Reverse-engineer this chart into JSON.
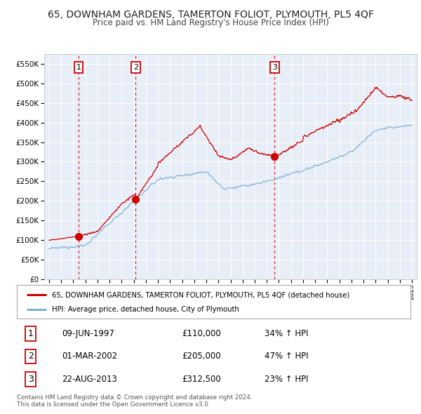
{
  "title": "65, DOWNHAM GARDENS, TAMERTON FOLIOT, PLYMOUTH, PL5 4QF",
  "subtitle": "Price paid vs. HM Land Registry's House Price Index (HPI)",
  "legend_line1": "65, DOWNHAM GARDENS, TAMERTON FOLIOT, PLYMOUTH, PL5 4QF (detached house)",
  "legend_line2": "HPI: Average price, detached house, City of Plymouth",
  "sales": [
    {
      "label": "1",
      "date_str": "09-JUN-1997",
      "date_x": 1997.44,
      "price": 110000,
      "pct": "34%",
      "dir": "↑"
    },
    {
      "label": "2",
      "date_str": "01-MAR-2002",
      "date_x": 2002.16,
      "price": 205000,
      "pct": "47%",
      "dir": "↑"
    },
    {
      "label": "3",
      "date_str": "22-AUG-2013",
      "date_x": 2013.64,
      "price": 312500,
      "pct": "23%",
      "dir": "↑"
    }
  ],
  "footer1": "Contains HM Land Registry data © Crown copyright and database right 2024.",
  "footer2": "This data is licensed under the Open Government Licence v3.0.",
  "hpi_color": "#7bafd4",
  "sale_color": "#cc0000",
  "dashed_line_color": "#cc0000",
  "plot_bg_color": "#e8eef7",
  "ylim": [
    0,
    575000
  ],
  "xlim": [
    1994.6,
    2025.4
  ],
  "yticks": [
    0,
    50000,
    100000,
    150000,
    200000,
    250000,
    300000,
    350000,
    400000,
    450000,
    500000,
    550000
  ],
  "xticks": [
    1995,
    1996,
    1997,
    1998,
    1999,
    2000,
    2001,
    2002,
    2003,
    2004,
    2005,
    2006,
    2007,
    2008,
    2009,
    2010,
    2011,
    2012,
    2013,
    2014,
    2015,
    2016,
    2017,
    2018,
    2019,
    2020,
    2021,
    2022,
    2023,
    2024,
    2025
  ]
}
